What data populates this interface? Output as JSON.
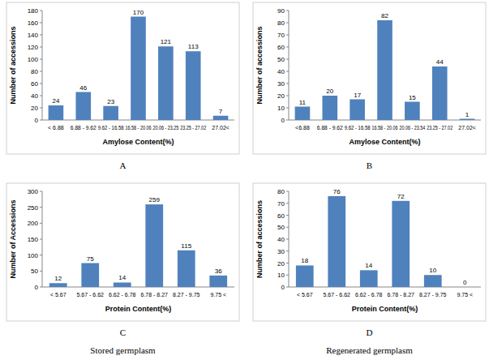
{
  "chart_data": [
    {
      "type": "bar",
      "subtitle": "A",
      "categories": [
        "< 6.88",
        "6.88 - 9.62",
        "9.62 - 16.58",
        "16.58 - 20.06",
        "20.06 - 23.25",
        "23.25 - 27.02",
        "27.02<"
      ],
      "values": [
        24,
        46,
        23,
        170,
        121,
        113,
        7
      ],
      "color": "#4f81bd",
      "xlabel": "Amylose Content(%)",
      "ylabel": "Number of accessions",
      "ylim": [
        0,
        180
      ],
      "yticks": [
        0,
        20,
        40,
        60,
        80,
        100,
        120,
        140,
        160,
        180
      ],
      "grid": false,
      "data_labels": true
    },
    {
      "type": "bar",
      "subtitle": "B",
      "categories": [
        "<6.88",
        "6.88 - 9.62",
        "9.62 - 16.58",
        "16.58 - 20.06",
        "20.06 - 23.54",
        "23.25 - 27.02",
        "27.02<"
      ],
      "values": [
        11,
        20,
        17,
        82,
        15,
        44,
        1
      ],
      "color": "#4f81bd",
      "xlabel": "Amylose Content(%)",
      "ylabel": "Number of accessions",
      "ylim": [
        0,
        90
      ],
      "yticks": [
        0,
        10,
        20,
        30,
        40,
        50,
        60,
        70,
        80,
        90
      ],
      "grid": false,
      "data_labels": true
    },
    {
      "type": "bar",
      "subtitle": "C",
      "annotations": [
        "Stored germplasm"
      ],
      "categories": [
        "< 5.67",
        "5.67 - 6.62",
        "6.62 - 6.78",
        "6.78 - 8.27",
        "8.27 - 9.75",
        "9.75 <"
      ],
      "values": [
        12,
        75,
        14,
        259,
        115,
        36
      ],
      "color": "#4f81bd",
      "xlabel": "Protein Content(%)",
      "ylabel": "Number of Accessions",
      "ylim": [
        0,
        300
      ],
      "yticks": [
        0,
        50,
        100,
        150,
        200,
        250,
        300
      ],
      "grid": false,
      "data_labels": true
    },
    {
      "type": "bar",
      "subtitle": "D",
      "annotations": [
        "Regenerated germplasm"
      ],
      "categories": [
        "< 5.67",
        "5.67 - 6.62",
        "6.62 - 6.78",
        "6.78 - 8.27",
        "8.27 - 9.75",
        "9.75 <"
      ],
      "values": [
        18,
        76,
        14,
        72,
        10,
        0
      ],
      "color": "#4f81bd",
      "xlabel": "Protein Content(%)",
      "ylabel": "Number of accessions",
      "ylim": [
        0,
        80
      ],
      "yticks": [
        0,
        10,
        20,
        30,
        40,
        50,
        60,
        70,
        80
      ],
      "grid": false,
      "data_labels": true
    }
  ]
}
